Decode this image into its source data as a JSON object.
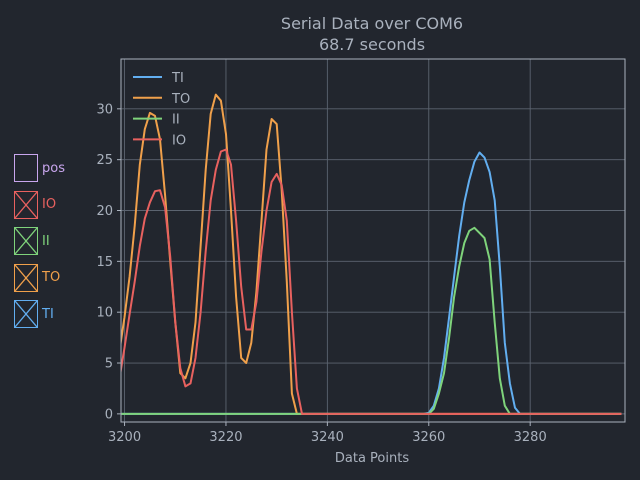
{
  "chart_data": {
    "type": "line",
    "title": "Serial Data over COM6",
    "subtitle": "68.7 seconds",
    "xlabel": "Data Points",
    "ylabel": "",
    "xlim": [
      3199.3,
      3298.7
    ],
    "ylim": [
      -0.8,
      34.9
    ],
    "xticks": [
      3200,
      3220,
      3240,
      3260,
      3280
    ],
    "yticks": [
      0,
      5,
      10,
      15,
      20,
      25,
      30
    ],
    "grid": true,
    "legend_position": "top-left",
    "series": [
      {
        "name": "TI",
        "color": "#62aef0",
        "x": [
          3199,
          3259,
          3260,
          3261,
          3262,
          3263,
          3264,
          3265,
          3266,
          3267,
          3268,
          3269,
          3270,
          3271,
          3272,
          3273,
          3274,
          3275,
          3276,
          3277,
          3278,
          3298
        ],
        "y": [
          0,
          0,
          0.1,
          0.8,
          2.5,
          5.5,
          9.5,
          13.5,
          17.5,
          20.8,
          23.0,
          24.8,
          25.7,
          25.2,
          23.8,
          21.0,
          14.5,
          7.0,
          3.0,
          0.6,
          0,
          0
        ]
      },
      {
        "name": "TO",
        "color": "#f0a04b",
        "x": [
          3199,
          3200,
          3201,
          3202,
          3203,
          3204,
          3205,
          3206,
          3207,
          3208,
          3209,
          3210,
          3211,
          3212,
          3213,
          3214,
          3215,
          3216,
          3217,
          3218,
          3219,
          3220,
          3221,
          3222,
          3223,
          3224,
          3225,
          3226,
          3227,
          3228,
          3229,
          3230,
          3231,
          3232,
          3233,
          3234,
          3235,
          3236,
          3298
        ],
        "y": [
          6.2,
          9.5,
          13.5,
          18.5,
          24.5,
          28.0,
          29.6,
          29.3,
          27.0,
          21.5,
          15.0,
          9.0,
          4.0,
          3.5,
          5.0,
          9.0,
          16.5,
          24.0,
          29.5,
          31.4,
          30.8,
          27.5,
          20.0,
          11.5,
          5.5,
          5.0,
          7.0,
          12.0,
          19.0,
          26.0,
          29.0,
          28.5,
          22.0,
          13.0,
          2.0,
          0,
          0,
          0,
          0
        ]
      },
      {
        "name": "II",
        "color": "#7fd37b",
        "x": [
          3199,
          3260,
          3261,
          3262,
          3263,
          3264,
          3265,
          3266,
          3267,
          3268,
          3269,
          3270,
          3271,
          3272,
          3273,
          3274,
          3275,
          3276,
          3298
        ],
        "y": [
          0,
          0,
          0.5,
          2.0,
          4.0,
          7.5,
          11.5,
          14.5,
          16.8,
          18.0,
          18.3,
          17.8,
          17.3,
          15.2,
          9.0,
          3.5,
          0.8,
          0,
          0
        ]
      },
      {
        "name": "IO",
        "color": "#e8615f",
        "x": [
          3199,
          3200,
          3201,
          3202,
          3203,
          3204,
          3205,
          3206,
          3207,
          3208,
          3209,
          3210,
          3211,
          3212,
          3213,
          3214,
          3215,
          3216,
          3217,
          3218,
          3219,
          3220,
          3221,
          3222,
          3223,
          3224,
          3225,
          3226,
          3227,
          3228,
          3229,
          3230,
          3231,
          3232,
          3233,
          3234,
          3235,
          3236,
          3298
        ],
        "y": [
          3.5,
          6.5,
          9.8,
          13.0,
          16.5,
          19.2,
          20.8,
          21.9,
          22.0,
          20.3,
          15.5,
          9.0,
          4.5,
          2.7,
          3.0,
          5.5,
          10.0,
          16.0,
          21.0,
          24.0,
          25.8,
          26.0,
          24.5,
          19.0,
          12.5,
          8.3,
          8.3,
          11.0,
          16.0,
          20.0,
          22.8,
          23.6,
          22.5,
          19.0,
          10.0,
          2.5,
          0,
          0,
          0
        ]
      }
    ]
  },
  "side_panel": {
    "items": [
      {
        "label": "pos",
        "color": "#c9a6ee",
        "checked": false
      },
      {
        "label": "IO",
        "color": "#e8615f",
        "checked": true
      },
      {
        "label": "II",
        "color": "#7fd37b",
        "checked": true
      },
      {
        "label": "TO",
        "color": "#f0a04b",
        "checked": true
      },
      {
        "label": "TI",
        "color": "#62aef0",
        "checked": true
      }
    ]
  }
}
